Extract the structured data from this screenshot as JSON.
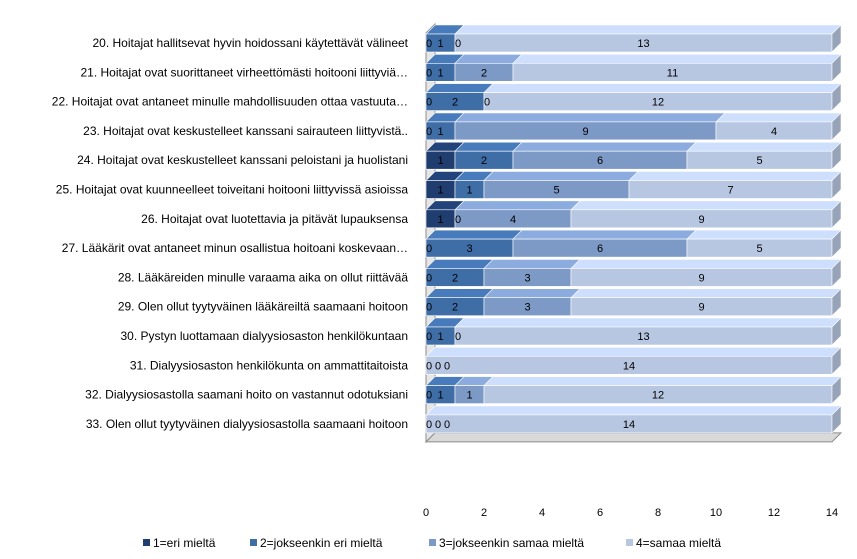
{
  "chart_data": {
    "type": "bar",
    "orientation": "horizontal",
    "stacked": true,
    "categories": [
      "20. Hoitajat hallitsevat hyvin hoidossani käytettävät välineet",
      "21. Hoitajat ovat suorittaneet virheettömästi hoitooni liittyviä…",
      "22. Hoitajat ovat antaneet minulle mahdollisuuden ottaa vastuuta…",
      "23. Hoitajat ovat keskustelleet kanssani sairauteen liittyvistä..",
      "24. Hoitajat ovat keskustelleet kanssani peloistani ja huolistani",
      "25. Hoitajat ovat kuunneelleet toiveitani hoitooni liittyvissä asioissa",
      "26. Hoitajat ovat luotettavia ja pitävät lupauksensa",
      "27. Lääkärit ovat antaneet minun osallistua hoitoani koskevaan…",
      "28. Lääkäreiden minulle varaama aika on ollut riittävää",
      "29. Olen ollut tyytyväinen lääkäreiltä saamaani hoitoon",
      "30. Pystyn luottamaan dialyysiosaston henkilökuntaan",
      "31. Dialyysiosaston henkilökunta on ammattitaitoista",
      "32. Dialyysiosastolla saamani hoito on vastannut odotuksiani",
      "33. Olen ollut tyytyväinen dialyysiosastolla saamaani hoitoon"
    ],
    "series": [
      {
        "name": "1=eri mieltä",
        "color": "#1f3d6e",
        "values": [
          0,
          0,
          0,
          0,
          1,
          1,
          1,
          0,
          0,
          0,
          0,
          0,
          0,
          0
        ]
      },
      {
        "name": "2=jokseenkin eri mieltä",
        "color": "#3f6ea7",
        "values": [
          1,
          1,
          2,
          1,
          2,
          1,
          0,
          3,
          2,
          2,
          1,
          0,
          1,
          0
        ]
      },
      {
        "name": "3=jokseenkin samaa mieltä",
        "color": "#7d99c6",
        "values": [
          0,
          2,
          0,
          9,
          6,
          5,
          4,
          6,
          3,
          3,
          0,
          0,
          1,
          0
        ]
      },
      {
        "name": "4=samaa mieltä",
        "color": "#b7c7e2",
        "values": [
          13,
          11,
          12,
          4,
          5,
          7,
          9,
          5,
          9,
          9,
          13,
          14,
          12,
          14
        ]
      }
    ],
    "xlim": [
      0,
      14
    ],
    "xticks": [
      0,
      2,
      4,
      6,
      8,
      10,
      12,
      14
    ],
    "legend_position": "bottom",
    "grid": false,
    "title": "",
    "xlabel": "",
    "ylabel": ""
  }
}
